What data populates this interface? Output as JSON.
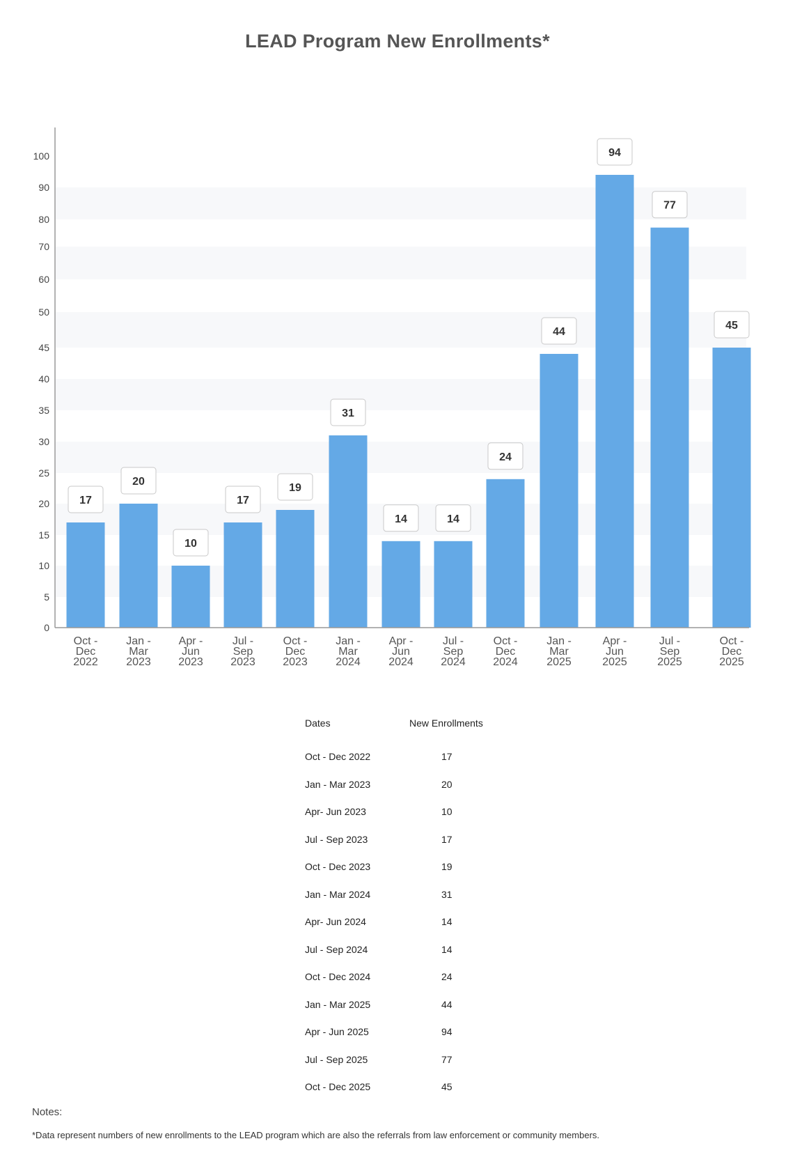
{
  "chart_data": {
    "type": "bar",
    "title": "LEAD Program New Enrollments*",
    "xlabel": "",
    "ylabel": "",
    "categories": [
      [
        "Oct -",
        "Dec",
        "2022"
      ],
      [
        "Jan -",
        "Mar",
        "2023"
      ],
      [
        "Apr -",
        "Jun",
        "2023"
      ],
      [
        "Jul -",
        "Sep",
        "2023"
      ],
      [
        "Oct -",
        "Dec",
        "2023"
      ],
      [
        "Jan -",
        "Mar",
        "2024"
      ],
      [
        "Apr -",
        "Jun",
        "2024"
      ],
      [
        "Jul -",
        "Sep",
        "2024"
      ],
      [
        "Oct -",
        "Dec",
        "2024"
      ],
      [
        "Jan -",
        "Mar",
        "2025"
      ],
      [
        "Apr -",
        "Jun",
        "2025"
      ],
      [
        "Jul -",
        "Sep",
        "2025"
      ],
      [
        "Oct -",
        "Dec",
        "2025"
      ]
    ],
    "values": [
      17,
      20,
      10,
      17,
      19,
      31,
      14,
      14,
      24,
      44,
      94,
      77,
      45
    ],
    "yticks": [
      0,
      5,
      10,
      15,
      20,
      25,
      30,
      35,
      40,
      45,
      50,
      60,
      70,
      80,
      90,
      100
    ],
    "ylim": [
      0,
      100
    ],
    "bar_color": "#64a9e6",
    "band_color": "#f7f8fa",
    "grid": false,
    "legend": "none"
  },
  "table": {
    "header_date": "Dates",
    "header_value": "New Enrollments",
    "rows": [
      {
        "date": "Oct - Dec 2022",
        "value": "17"
      },
      {
        "date": "Jan - Mar 2023",
        "value": "20"
      },
      {
        "date": "Apr-  Jun 2023",
        "value": "10"
      },
      {
        "date": "Jul - Sep 2023",
        "value": "17"
      },
      {
        "date": "Oct - Dec 2023",
        "value": "19"
      },
      {
        "date": "Jan - Mar 2024",
        "value": "31"
      },
      {
        "date": "Apr-  Jun 2024",
        "value": "14"
      },
      {
        "date": "Jul - Sep 2024",
        "value": "14"
      },
      {
        "date": "Oct - Dec 2024",
        "value": "24"
      },
      {
        "date": "Jan - Mar 2025",
        "value": "44"
      },
      {
        "date": "Apr - Jun 2025",
        "value": "94"
      },
      {
        "date": "Jul - Sep 2025",
        "value": "77"
      },
      {
        "date": "Oct - Dec 2025",
        "value": "45"
      }
    ]
  },
  "notes": {
    "heading": "Notes:",
    "text": "*Data represent numbers of new enrollments to the LEAD program which are also the referrals from law enforcement or community members."
  }
}
